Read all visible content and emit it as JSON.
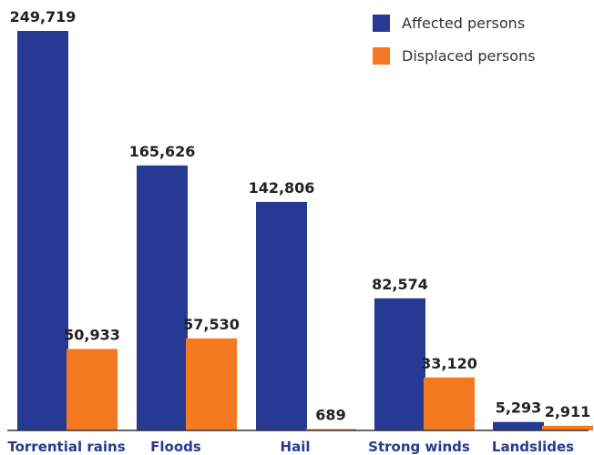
{
  "chart_data": {
    "type": "bar",
    "categories": [
      "Torrential rains",
      "Floods",
      "Hail",
      "Strong winds",
      "Landslides"
    ],
    "series": [
      {
        "name": "Affected persons",
        "color": "#263a93",
        "values": [
          249719,
          165626,
          142806,
          82574,
          5293
        ],
        "labels": [
          "249,719",
          "165,626",
          "142,806",
          "82,574",
          "5,293"
        ]
      },
      {
        "name": "Displaced persons",
        "color": "#f47920",
        "values": [
          50933,
          57530,
          689,
          33120,
          2911
        ],
        "labels": [
          "50,933",
          "57,530",
          "689",
          "33,120",
          "2,911"
        ]
      }
    ],
    "category_color": "#263a93",
    "legend_position": "top-right",
    "grid": false
  }
}
